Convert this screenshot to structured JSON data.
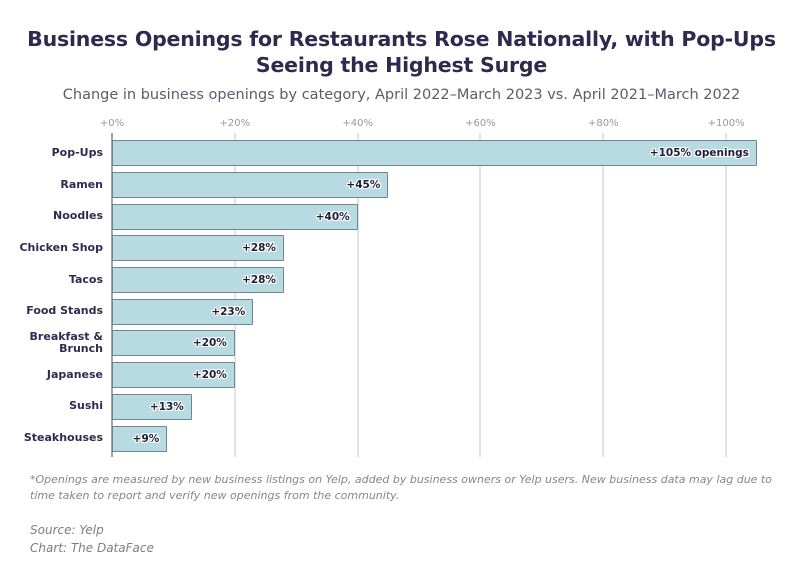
{
  "header": {
    "title": "Business Openings for Restaurants Rose Nationally, with Pop-Ups Seeing the Highest Surge",
    "subtitle": "Change in business openings by category, April 2022–March 2023 vs. April 2021–March 2022"
  },
  "chart_data": {
    "type": "bar",
    "orientation": "horizontal",
    "title": "Business Openings for Restaurants Rose Nationally, with Pop-Ups Seeing the Highest Surge",
    "subtitle": "Change in business openings by category, April 2022–March 2023 vs. April 2021–March 2022",
    "categories": [
      "Pop-Ups",
      "Ramen",
      "Noodles",
      "Chicken Shop",
      "Tacos",
      "Food Stands",
      "Breakfast & Brunch",
      "Japanese",
      "Sushi",
      "Steakhouses"
    ],
    "values": [
      105,
      45,
      40,
      28,
      28,
      23,
      20,
      20,
      13,
      9
    ],
    "bar_labels": [
      "+105% openings",
      "+45%",
      "+40%",
      "+28%",
      "+28%",
      "+23%",
      "+20%",
      "+20%",
      "+13%",
      "+9%"
    ],
    "x_ticks": {
      "labels": [
        "+0%",
        "+20%",
        "+40%",
        "+60%",
        "+80%",
        "+100%"
      ],
      "values": [
        0,
        20,
        40,
        60,
        80,
        100
      ]
    },
    "xlim": [
      0,
      106
    ],
    "grid": true,
    "legend": "none",
    "colors": {
      "bar_fill": "#b8dbe1",
      "bar_border": "#6f868e",
      "gridline": "#c6c6cc",
      "axis_line": "#46464e",
      "axis_label": "#97979f",
      "value_label": "#1d1d37",
      "category_label": "#2e2b50",
      "title": "#2d2a4e",
      "subtitle": "#5c5c6e"
    }
  },
  "footer": {
    "footnote": "*Openings are measured by new business listings on Yelp, added by business owners or Yelp users. New business data may lag due to time taken to report and verify new openings from the community.",
    "source": "Source: Yelp",
    "credit": "Chart: The DataFace"
  }
}
